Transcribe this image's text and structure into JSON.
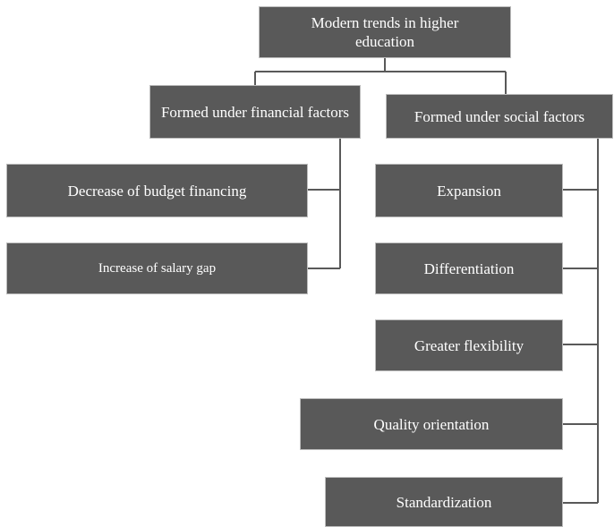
{
  "nodes": [
    {
      "label": "Modern trends in higher education"
    },
    {
      "label": "Formed under financial factors"
    },
    {
      "label": "Formed under social factors"
    },
    {
      "label": "Decrease of budget financing"
    },
    {
      "label": "Increase of salary gap"
    },
    {
      "label": "Expansion"
    },
    {
      "label": "Differentiation"
    },
    {
      "label": "Greater flexibility"
    },
    {
      "label": "Quality orientation"
    },
    {
      "label": "Standardization"
    }
  ]
}
